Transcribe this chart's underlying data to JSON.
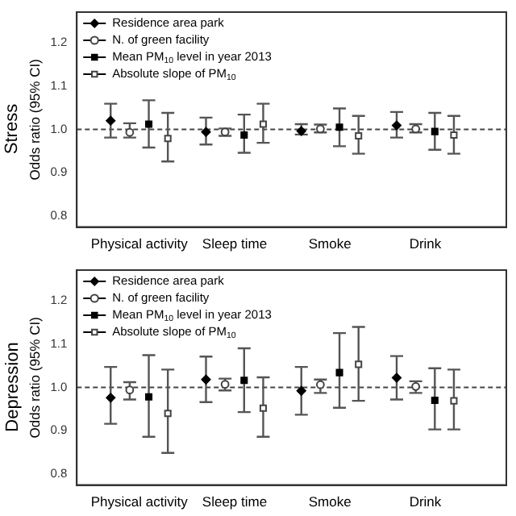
{
  "chart_data": [
    {
      "type": "scatter",
      "title": "Stress",
      "ylabel": "Odds ratio (95% CI)",
      "categories": [
        "Physical activity",
        "Sleep time",
        "Smoke",
        "Drink"
      ],
      "ylim": [
        0.775,
        1.27
      ],
      "yticks": [
        0.8,
        0.9,
        {
          "value": 1,
          "label": "1.0"
        },
        1.1,
        1.2
      ],
      "legend": "top left",
      "grid": false,
      "ref_lines": [
        {
          "axis": "y",
          "value": 1.0,
          "line_style": "dashed"
        }
      ],
      "series": [
        {
          "name": "Residence area park",
          "color": "#000000",
          "marker": "diamond",
          "values": [
            1.02,
            0.994,
            0.996,
            1.009
          ],
          "errors": [
            [
              0.981,
              1.059
            ],
            [
              0.965,
              1.027
            ],
            [
              0.988,
              1.012
            ],
            [
              0.981,
              1.04
            ]
          ]
        },
        {
          "name": "N. of green facility",
          "color": "#444444",
          "marker": "circle",
          "values": [
            0.993,
            0.994,
            1.001,
            1.001
          ],
          "errors": [
            [
              0.981,
              1.014
            ],
            [
              0.985,
              1.002
            ],
            [
              0.993,
              1.011
            ],
            [
              0.993,
              1.012
            ]
          ]
        },
        {
          "name": "Mean PM$_{10}$ level in year 2013",
          "color": "#000000",
          "marker": "square",
          "values": [
            1.012,
            0.987,
            1.005,
            0.995
          ],
          "errors": [
            [
              0.958,
              1.067
            ],
            [
              0.946,
              1.034
            ],
            [
              0.961,
              1.048
            ],
            [
              0.953,
              1.038
            ]
          ]
        },
        {
          "name": "Absolute slope of PM$_{10}$",
          "color": "#444444",
          "marker": "square",
          "values": [
            0.979,
            1.012,
            0.985,
            0.987
          ],
          "errors": [
            [
              0.926,
              1.038
            ],
            [
              0.969,
              1.059
            ],
            [
              0.944,
              1.031
            ],
            [
              0.944,
              1.031
            ]
          ]
        }
      ]
    },
    {
      "type": "scatter",
      "title": "Depression",
      "ylabel": "Odds ratio (95% CI)",
      "categories": [
        "Physical activity",
        "Sleep time",
        "Smoke",
        "Drink"
      ],
      "ylim": [
        0.775,
        1.27
      ],
      "yticks": [
        0.8,
        0.9,
        {
          "value": 1,
          "label": "1.0"
        },
        1.1,
        1.2
      ],
      "legend": "top left",
      "grid": false,
      "ref_lines": [
        {
          "axis": "y",
          "value": 1.0,
          "line_style": "dashed"
        }
      ],
      "series": [
        {
          "name": "Residence area park",
          "color": "#000000",
          "marker": "diamond",
          "values": [
            0.976,
            1.018,
            0.992,
            1.022
          ],
          "errors": [
            [
              0.916,
              1.047
            ],
            [
              0.966,
              1.071
            ],
            [
              0.937,
              1.047
            ],
            [
              0.972,
              1.072
            ]
          ]
        },
        {
          "name": "N. of green facility",
          "color": "#444444",
          "marker": "circle",
          "values": [
            0.994,
            1.007,
            1.006,
            1.002
          ],
          "errors": [
            [
              0.972,
              1.012
            ],
            [
              0.993,
              1.02
            ],
            [
              0.987,
              1.018
            ],
            [
              0.987,
              1.014
            ]
          ]
        },
        {
          "name": "Mean PM$_{10}$ level in year 2013",
          "color": "#000000",
          "marker": "square",
          "values": [
            0.978,
            1.016,
            1.034,
            0.97
          ],
          "errors": [
            [
              0.886,
              1.074
            ],
            [
              0.943,
              1.09
            ],
            [
              0.953,
              1.125
            ],
            [
              0.903,
              1.044
            ]
          ]
        },
        {
          "name": "Absolute slope of PM$_{10}$",
          "color": "#444444",
          "marker": "square",
          "values": [
            0.94,
            0.952,
            1.053,
            0.969
          ],
          "errors": [
            [
              0.849,
              1.041
            ],
            [
              0.886,
              1.023
            ],
            [
              0.969,
              1.139
            ],
            [
              0.903,
              1.041
            ]
          ]
        }
      ]
    }
  ]
}
